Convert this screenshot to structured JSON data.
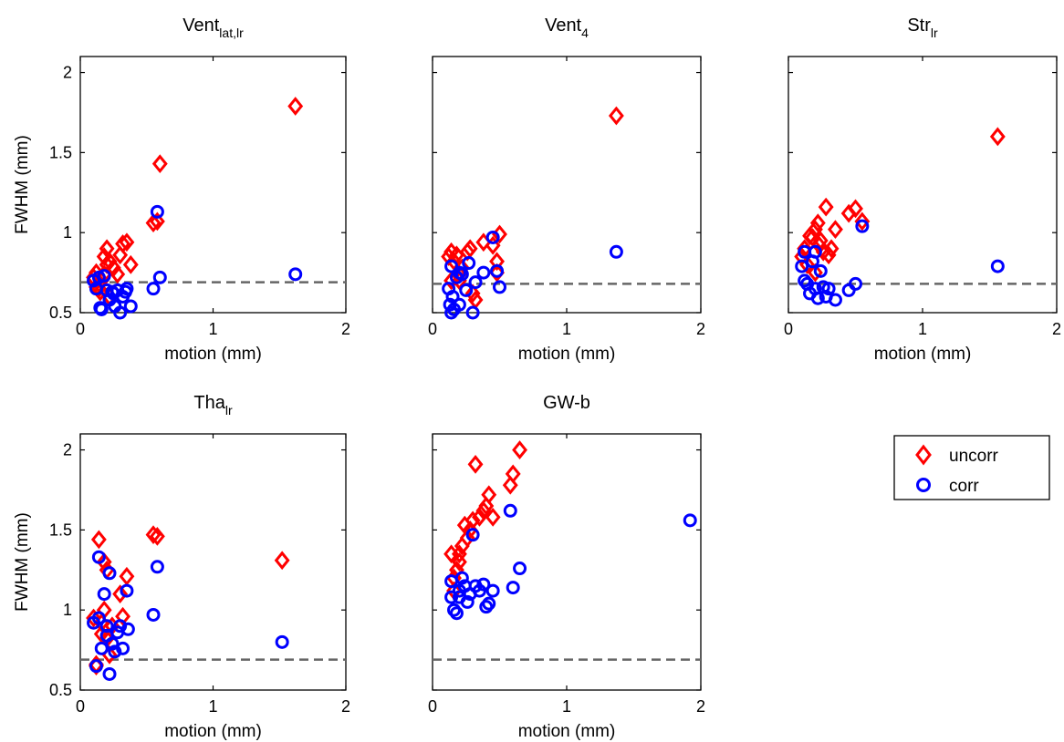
{
  "legend": {
    "items": [
      {
        "label": "uncorr",
        "marker": "diamond",
        "color": "#ff0000"
      },
      {
        "label": "corr",
        "marker": "circle",
        "color": "#0000ff"
      }
    ]
  },
  "colors": {
    "uncorr": "#ff0000",
    "corr": "#0000ff",
    "reference_line": "#666666"
  },
  "chart_data": [
    {
      "type": "scatter",
      "title_main": "Vent",
      "title_sub": "lat,lr",
      "xlabel": "motion (mm)",
      "ylabel": "FWHM (mm)",
      "xlim": [
        0,
        2
      ],
      "ylim": [
        0.5,
        2.1
      ],
      "xticks": [
        "0",
        "1",
        "2"
      ],
      "yticks": [
        "0.5",
        "1",
        "1.5",
        "2"
      ],
      "reference_line": 0.69,
      "series": [
        {
          "name": "uncorr",
          "x": [
            0.1,
            0.12,
            0.14,
            0.15,
            0.16,
            0.18,
            0.2,
            0.2,
            0.22,
            0.25,
            0.3,
            0.32,
            0.35,
            0.38,
            0.55,
            0.58,
            1.62,
            0.6,
            0.18,
            0.12,
            0.14,
            0.22,
            0.28
          ],
          "y": [
            0.72,
            0.75,
            0.68,
            0.63,
            0.7,
            0.85,
            0.9,
            0.8,
            0.82,
            0.78,
            0.86,
            0.93,
            0.94,
            0.8,
            1.06,
            1.07,
            1.79,
            1.43,
            0.74,
            0.66,
            0.65,
            0.6,
            0.74
          ]
        },
        {
          "name": "corr",
          "x": [
            0.1,
            0.12,
            0.14,
            0.16,
            0.18,
            0.2,
            0.22,
            0.24,
            0.26,
            0.28,
            0.3,
            0.32,
            0.35,
            0.38,
            0.55,
            0.58,
            0.6,
            1.62,
            0.15,
            0.25,
            0.34
          ],
          "y": [
            0.7,
            0.65,
            0.72,
            0.52,
            0.73,
            0.64,
            0.58,
            0.63,
            0.54,
            0.64,
            0.5,
            0.6,
            0.65,
            0.54,
            0.65,
            1.13,
            0.72,
            0.74,
            0.53,
            0.62,
            0.63
          ]
        }
      ]
    },
    {
      "type": "scatter",
      "title_main": "Vent",
      "title_sub": "4",
      "xlabel": "motion (mm)",
      "ylabel": "",
      "xlim": [
        0,
        2
      ],
      "ylim": [
        0.5,
        2.1
      ],
      "xticks": [
        "0",
        "1",
        "2"
      ],
      "yticks": [],
      "reference_line": 0.68,
      "series": [
        {
          "name": "uncorr",
          "x": [
            0.12,
            0.14,
            0.16,
            0.18,
            0.2,
            0.22,
            0.26,
            0.28,
            0.3,
            0.32,
            0.38,
            0.45,
            0.48,
            0.5,
            1.37,
            0.14,
            0.2,
            0.48
          ],
          "y": [
            0.85,
            0.88,
            0.82,
            0.86,
            0.7,
            0.78,
            0.88,
            0.9,
            0.62,
            0.58,
            0.94,
            0.92,
            0.82,
            0.99,
            1.73,
            0.7,
            0.74,
            0.75
          ]
        },
        {
          "name": "corr",
          "x": [
            0.12,
            0.13,
            0.14,
            0.15,
            0.16,
            0.18,
            0.2,
            0.22,
            0.25,
            0.27,
            0.3,
            0.32,
            0.38,
            0.45,
            0.48,
            0.5,
            1.37,
            0.14,
            0.2
          ],
          "y": [
            0.65,
            0.55,
            0.5,
            0.6,
            0.52,
            0.72,
            0.75,
            0.74,
            0.64,
            0.81,
            0.5,
            0.69,
            0.75,
            0.97,
            0.76,
            0.66,
            0.88,
            0.79,
            0.55
          ]
        }
      ]
    },
    {
      "type": "scatter",
      "title_main": "Str",
      "title_sub": "lr",
      "xlabel": "motion (mm)",
      "ylabel": "",
      "xlim": [
        0,
        2
      ],
      "ylim": [
        0.5,
        2.1
      ],
      "xticks": [
        "0",
        "1",
        "2"
      ],
      "yticks": [],
      "reference_line": 0.68,
      "series": [
        {
          "name": "uncorr",
          "x": [
            0.1,
            0.12,
            0.14,
            0.16,
            0.18,
            0.2,
            0.22,
            0.24,
            0.26,
            0.28,
            0.3,
            0.32,
            0.35,
            0.45,
            0.5,
            0.55,
            1.56,
            0.2,
            0.23
          ],
          "y": [
            0.85,
            0.9,
            0.8,
            0.98,
            0.97,
            1.02,
            1.06,
            0.95,
            0.88,
            1.16,
            0.86,
            0.9,
            1.02,
            1.12,
            1.15,
            1.07,
            1.6,
            0.75,
            0.92
          ]
        },
        {
          "name": "corr",
          "x": [
            0.1,
            0.12,
            0.14,
            0.16,
            0.18,
            0.2,
            0.22,
            0.24,
            0.26,
            0.28,
            0.3,
            0.35,
            0.45,
            0.5,
            0.55,
            1.56,
            0.12,
            0.2
          ],
          "y": [
            0.79,
            0.88,
            0.68,
            0.62,
            0.82,
            0.88,
            0.59,
            0.76,
            0.66,
            0.6,
            0.65,
            0.58,
            0.64,
            0.68,
            1.04,
            0.79,
            0.7,
            0.65
          ]
        }
      ]
    },
    {
      "type": "scatter",
      "title_main": "Tha",
      "title_sub": "lr",
      "xlabel": "motion (mm)",
      "ylabel": "FWHM (mm)",
      "xlim": [
        0,
        2
      ],
      "ylim": [
        0.5,
        2.1
      ],
      "xticks": [
        "0",
        "1",
        "2"
      ],
      "yticks": [
        "0.5",
        "1",
        "1.5",
        "2"
      ],
      "reference_line": 0.69,
      "series": [
        {
          "name": "uncorr",
          "x": [
            0.1,
            0.12,
            0.14,
            0.16,
            0.18,
            0.2,
            0.22,
            0.24,
            0.3,
            0.32,
            0.35,
            0.55,
            0.58,
            1.52,
            0.16,
            0.2,
            0.18,
            0.12
          ],
          "y": [
            0.95,
            0.65,
            1.44,
            0.85,
            1.0,
            1.25,
            0.72,
            0.9,
            1.1,
            0.96,
            1.21,
            1.47,
            1.46,
            1.31,
            0.92,
            0.82,
            1.3,
            0.66
          ]
        },
        {
          "name": "corr",
          "x": [
            0.1,
            0.12,
            0.14,
            0.16,
            0.18,
            0.2,
            0.22,
            0.24,
            0.26,
            0.28,
            0.3,
            0.32,
            0.35,
            0.55,
            0.58,
            1.52,
            0.14,
            0.2,
            0.22,
            0.36
          ],
          "y": [
            0.92,
            0.65,
            1.33,
            0.76,
            1.1,
            0.9,
            0.6,
            0.79,
            0.74,
            0.86,
            0.9,
            0.76,
            1.12,
            0.97,
            1.27,
            0.8,
            0.95,
            0.84,
            1.23,
            0.88
          ]
        }
      ]
    },
    {
      "type": "scatter",
      "title_main": "GW-b",
      "title_sub": "",
      "xlabel": "motion (mm)",
      "ylabel": "",
      "xlim": [
        0,
        2
      ],
      "ylim": [
        0.5,
        2.1
      ],
      "xticks": [
        "0",
        "1",
        "2"
      ],
      "yticks": [],
      "reference_line": 0.69,
      "series": [
        {
          "name": "uncorr",
          "x": [
            0.14,
            0.16,
            0.18,
            0.2,
            0.22,
            0.24,
            0.26,
            0.28,
            0.3,
            0.32,
            0.35,
            0.38,
            0.4,
            0.42,
            0.45,
            0.58,
            0.6,
            0.65,
            0.2,
            0.16
          ],
          "y": [
            1.35,
            1.2,
            1.25,
            1.3,
            1.4,
            1.53,
            1.45,
            1.5,
            1.56,
            1.91,
            1.58,
            1.62,
            1.65,
            1.72,
            1.58,
            1.78,
            1.85,
            2.0,
            1.35,
            1.12
          ]
        },
        {
          "name": "corr",
          "x": [
            0.14,
            0.16,
            0.18,
            0.2,
            0.22,
            0.24,
            0.26,
            0.28,
            0.3,
            0.32,
            0.35,
            0.38,
            0.4,
            0.42,
            0.45,
            0.58,
            0.6,
            0.65,
            1.92,
            0.2,
            0.14
          ],
          "y": [
            1.08,
            1.0,
            0.98,
            1.12,
            1.2,
            1.15,
            1.05,
            1.1,
            1.47,
            1.15,
            1.12,
            1.16,
            1.02,
            1.04,
            1.12,
            1.62,
            1.14,
            1.26,
            1.56,
            1.08,
            1.18
          ]
        }
      ]
    }
  ]
}
